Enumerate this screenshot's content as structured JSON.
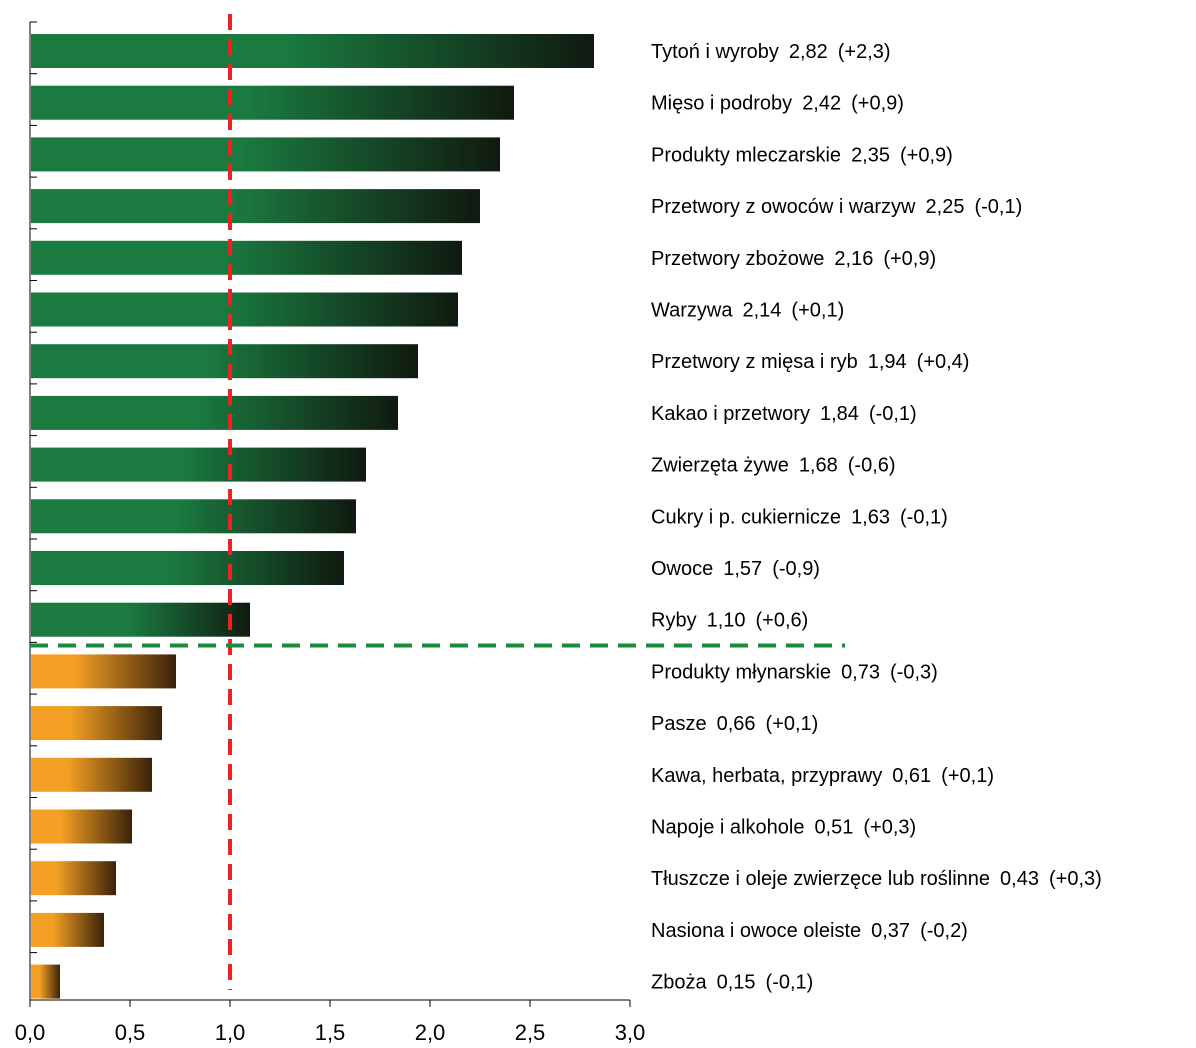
{
  "chart_data": {
    "type": "bar",
    "orientation": "horizontal",
    "xlim": [
      0,
      3.0
    ],
    "x_ticks": [
      "0,0",
      "0,5",
      "1,0",
      "1,5",
      "2,0",
      "2,5",
      "3,0"
    ],
    "x_tick_values": [
      0,
      0.5,
      1.0,
      1.5,
      2.0,
      2.5,
      3.0
    ],
    "reference_line": {
      "value": 1.0,
      "color": "#ee2222",
      "style": "dashed"
    },
    "group_separator": {
      "after_index": 11,
      "color": "#1a8a3c",
      "style": "dashed"
    },
    "colors": {
      "group_above": "#1a7a40",
      "group_above_dark": "#101a10",
      "group_below": "#f3a024",
      "group_below_dark": "#3a220a"
    },
    "categories": [
      {
        "name": "Tytoń i wyroby",
        "value": 2.82,
        "value_label": "2,82",
        "change_label": "(+2,3)",
        "group": "above"
      },
      {
        "name": "Mięso i podroby",
        "value": 2.42,
        "value_label": "2,42",
        "change_label": "(+0,9)",
        "group": "above"
      },
      {
        "name": "Produkty mleczarskie",
        "value": 2.35,
        "value_label": "2,35",
        "change_label": "(+0,9)",
        "group": "above"
      },
      {
        "name": "Przetwory z owoców i warzyw",
        "value": 2.25,
        "value_label": "2,25",
        "change_label": "(-0,1)",
        "group": "above"
      },
      {
        "name": "Przetwory zbożowe",
        "value": 2.16,
        "value_label": "2,16",
        "change_label": "(+0,9)",
        "group": "above"
      },
      {
        "name": "Warzywa",
        "value": 2.14,
        "value_label": "2,14",
        "change_label": "(+0,1)",
        "group": "above"
      },
      {
        "name": "Przetwory z mięsa i ryb",
        "value": 1.94,
        "value_label": "1,94",
        "change_label": "(+0,4)",
        "group": "above"
      },
      {
        "name": "Kakao i przetwory",
        "value": 1.84,
        "value_label": "1,84",
        "change_label": "(-0,1)",
        "group": "above"
      },
      {
        "name": "Zwierzęta żywe",
        "value": 1.68,
        "value_label": "1,68",
        "change_label": "(-0,6)",
        "group": "above"
      },
      {
        "name": "Cukry i p. cukiernicze",
        "value": 1.63,
        "value_label": "1,63",
        "change_label": "(-0,1)",
        "group": "above"
      },
      {
        "name": "Owoce",
        "value": 1.57,
        "value_label": "1,57",
        "change_label": "(-0,9)",
        "group": "above"
      },
      {
        "name": "Ryby",
        "value": 1.1,
        "value_label": "1,10",
        "change_label": "(+0,6)",
        "group": "above"
      },
      {
        "name": "Produkty młynarskie",
        "value": 0.73,
        "value_label": "0,73",
        "change_label": "(-0,3)",
        "group": "below"
      },
      {
        "name": "Pasze",
        "value": 0.66,
        "value_label": "0,66",
        "change_label": "(+0,1)",
        "group": "below"
      },
      {
        "name": "Kawa, herbata, przyprawy",
        "value": 0.61,
        "value_label": "0,61",
        "change_label": "(+0,1)",
        "group": "below"
      },
      {
        "name": "Napoje i alkohole",
        "value": 0.51,
        "value_label": "0,51",
        "change_label": "(+0,3)",
        "group": "below"
      },
      {
        "name": "Tłuszcze i oleje zwierzęce lub roślinne",
        "value": 0.43,
        "value_label": "0,43",
        "change_label": "(+0,3)",
        "group": "below"
      },
      {
        "name": "Nasiona i owoce oleiste",
        "value": 0.37,
        "value_label": "0,37",
        "change_label": "(-0,2)",
        "group": "below"
      },
      {
        "name": "Zboża",
        "value": 0.15,
        "value_label": "0,15",
        "change_label": "(-0,1)",
        "group": "below"
      }
    ]
  }
}
